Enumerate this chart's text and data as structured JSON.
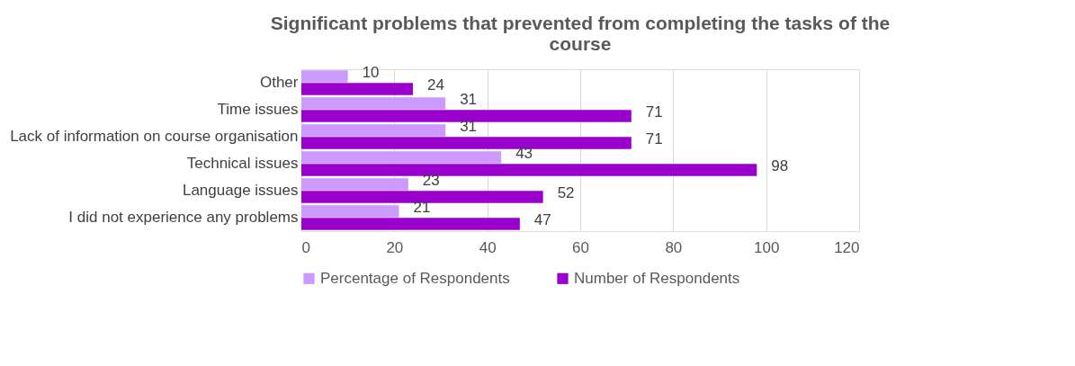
{
  "chart_data": {
    "type": "bar",
    "orientation": "horizontal",
    "title": "Significant problems that prevented from completing the tasks of the course",
    "categories": [
      "Other",
      "Time issues",
      "Lack of information on course organisation",
      "Technical issues",
      "Language issues",
      "I did not experience any problems"
    ],
    "series": [
      {
        "name": "Percentage of Respondents",
        "color": "#cc99ff",
        "values": [
          10,
          31,
          31,
          43,
          23,
          21
        ]
      },
      {
        "name": "Number of Respondents",
        "color": "#9900cc",
        "values": [
          24,
          71,
          71,
          98,
          52,
          47
        ]
      }
    ],
    "xlim": [
      0,
      120
    ],
    "xticks": [
      0,
      20,
      40,
      60,
      80,
      100,
      120
    ],
    "grid": "x",
    "legend": "bottom",
    "data_labels": true
  }
}
